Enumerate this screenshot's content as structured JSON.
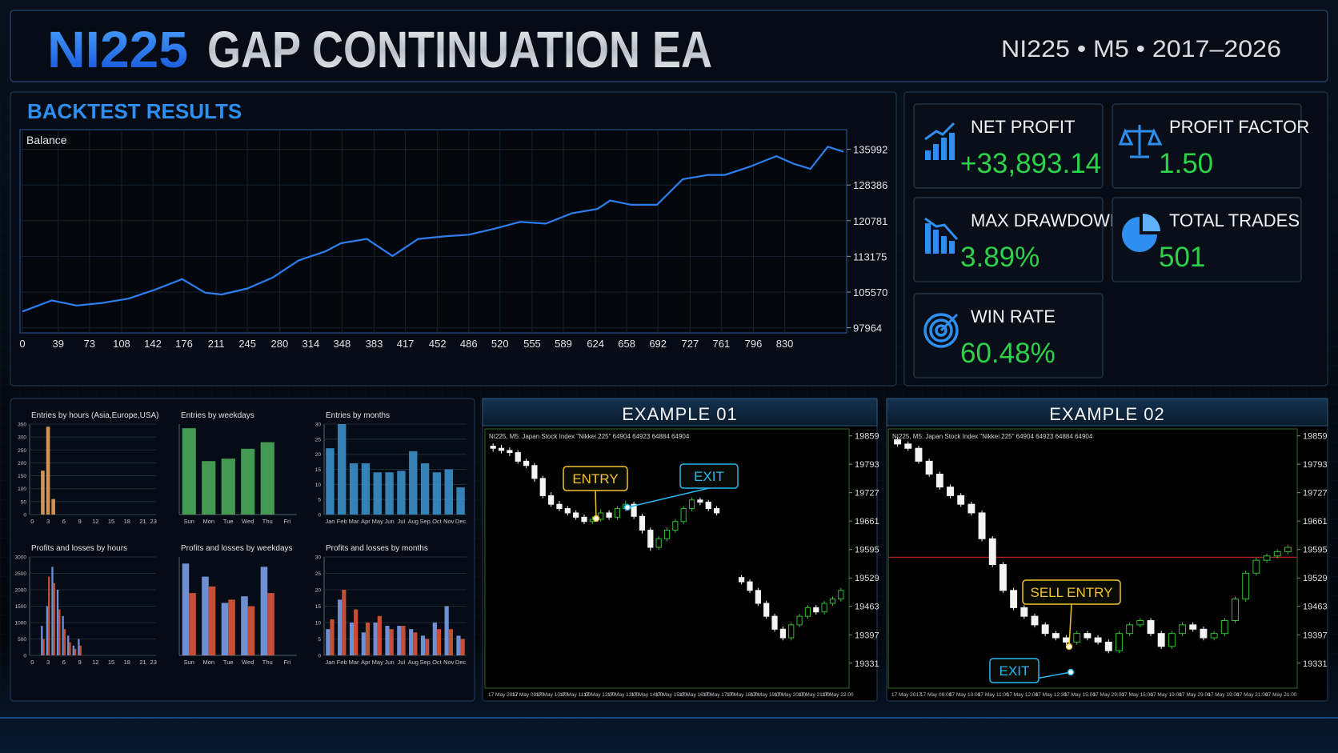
{
  "header": {
    "title_accent": "NI225",
    "title": "GAP CONTINUATION EA",
    "subtitle": "NI225 • M5 • 2017–2026"
  },
  "backtest": {
    "title": "BACKTEST RESULTS",
    "chart": {
      "type": "line",
      "label": "Balance",
      "color": "#2d7ff0",
      "x": [
        0,
        32,
        59,
        87,
        115,
        143,
        174,
        199,
        217,
        245,
        273,
        301,
        329,
        347,
        375,
        403,
        431,
        459,
        486,
        514,
        542,
        570,
        598,
        626,
        640,
        663,
        691,
        719,
        747,
        765,
        793,
        821,
        840,
        858,
        877,
        894
      ],
      "values": [
        101421,
        103786,
        102695,
        103241,
        104150,
        105970,
        108335,
        105424,
        105060,
        106334,
        108699,
        112338,
        114158,
        115977,
        116887,
        113248,
        116887,
        117433,
        117797,
        119070,
        120526,
        120162,
        122347,
        123256,
        125075,
        124166,
        124166,
        129624,
        130534,
        130534,
        132353,
        134536,
        132898,
        131807,
        136537,
        135446
      ],
      "xlim": [
        0,
        894
      ],
      "ylim": [
        96872,
        140176
      ],
      "xticks": [
        0,
        39,
        73,
        108,
        142,
        176,
        211,
        245,
        280,
        314,
        348,
        383,
        417,
        452,
        486,
        520,
        555,
        589,
        624,
        658,
        692,
        727,
        761,
        796,
        830
      ],
      "yticks": [
        97964,
        105570,
        113175,
        120781,
        128386,
        135992
      ],
      "grid": true
    }
  },
  "stats": [
    {
      "label": "NET PROFIT",
      "value": "+33,893.14"
    },
    {
      "label": "PROFIT FACTOR",
      "value": "1.50"
    },
    {
      "label": "MAX DRAWDOWN",
      "value": "3.89%"
    },
    {
      "label": "TOTAL TRADES",
      "value": "501"
    },
    {
      "label": "WIN RATE",
      "value": "60.48%"
    }
  ],
  "distributions": [
    {
      "type": "bar",
      "title": "Entries by hours (Asia,Europe,USA)",
      "color": "#e8a25a",
      "categories": [
        0,
        null,
        null,
        3,
        null,
        null,
        6,
        null,
        null,
        9,
        null,
        null,
        12,
        null,
        null,
        15,
        null,
        null,
        18,
        null,
        null,
        21,
        null,
        23
      ],
      "values": [
        0,
        0,
        170,
        340,
        60,
        0,
        0,
        0,
        0,
        0,
        0,
        0,
        0,
        0,
        0,
        0,
        0,
        0,
        0,
        0,
        0,
        0,
        0,
        0
      ],
      "ylim": [
        0,
        350
      ],
      "yticks": [
        0,
        50,
        100,
        150,
        200,
        250,
        300,
        350
      ]
    },
    {
      "type": "bar",
      "title": "Entries by weekdays",
      "color": "#4caa5a",
      "categories": [
        "Sun",
        "Mon",
        "Tue",
        "Wed",
        "Thu",
        "Fri"
      ],
      "values": [
        105,
        65,
        68,
        80,
        88,
        0
      ],
      "ylim": [
        0,
        110
      ]
    },
    {
      "type": "bar",
      "title": "Entries by months",
      "color": "#3a8fc8",
      "categories": [
        "Jan",
        "Feb",
        "Mar",
        "Apr",
        "May",
        "Jun",
        "Jul",
        "Aug",
        "Sep",
        "Oct",
        "Nov",
        "Dec"
      ],
      "values": [
        22,
        30,
        17,
        17,
        14,
        14,
        14.5,
        21,
        17,
        14,
        15,
        9
      ],
      "ylim": [
        0,
        30
      ],
      "yticks": [
        0,
        5,
        10,
        15,
        20,
        25,
        30
      ]
    },
    {
      "type": "bar",
      "title": "Profits and losses by hours",
      "categories": [
        0,
        null,
        null,
        3,
        null,
        null,
        6,
        null,
        null,
        9,
        null,
        null,
        12,
        null,
        null,
        15,
        null,
        null,
        18,
        null,
        null,
        21,
        null,
        23
      ],
      "series": [
        {
          "color": "#7a9ee8",
          "values": [
            0,
            0,
            900,
            1500,
            2700,
            2000,
            1200,
            600,
            300,
            500,
            0,
            0,
            0,
            0,
            0,
            0,
            0,
            0,
            0,
            0,
            0,
            0,
            0,
            0
          ]
        },
        {
          "color": "#d9553a",
          "values": [
            0,
            0,
            500,
            2400,
            2200,
            1400,
            800,
            400,
            200,
            300,
            0,
            0,
            0,
            0,
            0,
            0,
            0,
            0,
            0,
            0,
            0,
            0,
            0,
            0
          ]
        }
      ],
      "ylim": [
        0,
        3000
      ],
      "yticks": [
        0,
        500,
        1000,
        1500,
        2000,
        2500,
        3000
      ]
    },
    {
      "type": "bar",
      "title": "Profits and losses by weekdays",
      "categories": [
        "Sun",
        "Mon",
        "Tue",
        "Wed",
        "Thu",
        "Fri"
      ],
      "series": [
        {
          "color": "#7a9ee8",
          "values": [
            2800,
            2400,
            1600,
            1800,
            2700,
            0
          ]
        },
        {
          "color": "#d9553a",
          "values": [
            1900,
            2100,
            1700,
            1500,
            1900,
            0
          ]
        }
      ],
      "ylim": [
        0,
        3000
      ]
    },
    {
      "type": "bar",
      "title": "Profits and losses by months",
      "categories": [
        "Jan",
        "Feb",
        "Mar",
        "Apr",
        "May",
        "Jun",
        "Jul",
        "Aug",
        "Sep",
        "Oct",
        "Nov",
        "Dec"
      ],
      "series": [
        {
          "color": "#7a9ee8",
          "values": [
            8,
            17,
            10,
            7,
            10,
            9,
            9,
            8,
            6,
            10,
            15,
            6
          ]
        },
        {
          "color": "#d9553a",
          "values": [
            11,
            20,
            14,
            10,
            12,
            8,
            9,
            7,
            5,
            8,
            8,
            5
          ]
        }
      ],
      "ylim": [
        0,
        30
      ],
      "yticks": [
        0,
        5,
        10,
        15,
        20,
        25,
        30
      ]
    }
  ],
  "examples": [
    {
      "title": "EXAMPLE 01",
      "chart": {
        "type": "candlestick",
        "info": "NI225, M5:  Japan Stock Index \"Nikkei 225\"  64904 64923 64884 64904",
        "candles": [
          [
            19835,
            19842,
            19822,
            19830
          ],
          [
            19830,
            19838,
            19818,
            19825
          ],
          [
            19825,
            19832,
            19812,
            19820
          ],
          [
            19820,
            19826,
            19794,
            19800
          ],
          [
            19800,
            19806,
            19784,
            19790
          ],
          [
            19790,
            19796,
            19752,
            19760
          ],
          [
            19760,
            19766,
            19714,
            19720
          ],
          [
            19720,
            19728,
            19694,
            19700
          ],
          [
            19700,
            19708,
            19684,
            19690
          ],
          [
            19690,
            19696,
            19674,
            19680
          ],
          [
            19680,
            19686,
            19664,
            19670
          ],
          [
            19670,
            19676,
            19654,
            19660
          ],
          [
            19660,
            19672,
            19654,
            19665
          ],
          [
            19665,
            19688,
            19660,
            19680
          ],
          [
            19680,
            19686,
            19664,
            19670
          ],
          [
            19670,
            19696,
            19664,
            19690
          ],
          [
            19690,
            19708,
            19684,
            19700
          ],
          [
            19700,
            19706,
            19666,
            19672
          ],
          [
            19672,
            19678,
            19632,
            19640
          ],
          [
            19640,
            19646,
            19592,
            19600
          ],
          [
            19600,
            19626,
            19594,
            19620
          ],
          [
            19620,
            19646,
            19614,
            19640
          ],
          [
            19640,
            19666,
            19634,
            19660
          ],
          [
            19660,
            19696,
            19654,
            19690
          ],
          [
            19690,
            19716,
            19684,
            19710
          ],
          [
            19710,
            19716,
            19698,
            19705
          ],
          [
            19705,
            19710,
            19684,
            19690
          ],
          [
            19690,
            19696,
            19674,
            19680
          ],
          null,
          null,
          [
            19530,
            19536,
            19514,
            19520
          ],
          [
            19520,
            19526,
            19494,
            19500
          ],
          [
            19500,
            19506,
            19464,
            19470
          ],
          [
            19470,
            19476,
            19434,
            19440
          ],
          [
            19440,
            19446,
            19404,
            19410
          ],
          [
            19410,
            19416,
            19384,
            19390
          ],
          [
            19390,
            19426,
            19384,
            19420
          ],
          [
            19420,
            19446,
            19414,
            19440
          ],
          [
            19440,
            19466,
            19434,
            19460
          ],
          [
            19460,
            19466,
            19444,
            19450
          ],
          [
            19450,
            19476,
            19444,
            19470
          ],
          [
            19470,
            19486,
            19464,
            19480
          ],
          [
            19480,
            19506,
            19474,
            19500
          ]
        ],
        "ylim": [
          19273,
          19875
        ],
        "yticks": [
          19331,
          19397,
          19463,
          19529,
          19595,
          19661,
          19727,
          19793,
          19859
        ],
        "xlabels": [
          "17 May 2017",
          "17 May 09:00",
          "17 May 10:00",
          "17 May 11:00",
          "17 May 12:00",
          "17 May 13:00",
          "17 May 14:00",
          "17 May 15:00",
          "17 May 16:00",
          "17 May 17:00",
          "17 May 18:00",
          "17 May 19:00",
          "17 May 20:00",
          "17 May 21:00",
          "17 May 22:00"
        ],
        "annotations": [
          {
            "text": "ENTRY"
          },
          {
            "text": "EXIT"
          }
        ]
      }
    },
    {
      "title": "EXAMPLE 02",
      "chart": {
        "type": "candlestick",
        "info": "NI225, M5:  Japan Stock Index \"Nikkei 225\"  64904 64923 64884 64904",
        "candles": [
          [
            19850,
            19856,
            19834,
            19840
          ],
          [
            19840,
            19846,
            19824,
            19830
          ],
          [
            19830,
            19836,
            19794,
            19800
          ],
          [
            19800,
            19806,
            19764,
            19770
          ],
          [
            19770,
            19776,
            19734,
            19740
          ],
          [
            19740,
            19746,
            19714,
            19720
          ],
          [
            19720,
            19726,
            19694,
            19700
          ],
          [
            19700,
            19706,
            19674,
            19680
          ],
          [
            19680,
            19686,
            19614,
            19620
          ],
          [
            19620,
            19626,
            19554,
            19560
          ],
          [
            19560,
            19566,
            19494,
            19500
          ],
          [
            19500,
            19506,
            19454,
            19460
          ],
          [
            19460,
            19466,
            19434,
            19440
          ],
          [
            19440,
            19446,
            19414,
            19420
          ],
          [
            19420,
            19426,
            19394,
            19400
          ],
          [
            19400,
            19406,
            19384,
            19390
          ],
          [
            19390,
            19396,
            19374,
            19380
          ],
          [
            19380,
            19406,
            19374,
            19400
          ],
          [
            19400,
            19406,
            19384,
            19390
          ],
          [
            19390,
            19396,
            19374,
            19380
          ],
          [
            19380,
            19386,
            19354,
            19360
          ],
          [
            19360,
            19406,
            19354,
            19400
          ],
          [
            19400,
            19426,
            19394,
            19420
          ],
          [
            19420,
            19436,
            19414,
            19430
          ],
          [
            19430,
            19436,
            19394,
            19400
          ],
          [
            19400,
            19406,
            19364,
            19370
          ],
          [
            19370,
            19406,
            19364,
            19400
          ],
          [
            19400,
            19426,
            19394,
            19420
          ],
          [
            19420,
            19426,
            19404,
            19410
          ],
          [
            19410,
            19416,
            19384,
            19390
          ],
          [
            19390,
            19406,
            19384,
            19400
          ],
          [
            19400,
            19436,
            19394,
            19430
          ],
          [
            19430,
            19486,
            19424,
            19480
          ],
          [
            19480,
            19546,
            19474,
            19540
          ],
          [
            19540,
            19576,
            19534,
            19570
          ],
          [
            19570,
            19586,
            19564,
            19580
          ],
          [
            19580,
            19596,
            19574,
            19590
          ],
          [
            19590,
            19606,
            19584,
            19600
          ]
        ],
        "level": 19577,
        "ylim": [
          19273,
          19875
        ],
        "yticks": [
          19331,
          19397,
          19463,
          19529,
          19595,
          19661,
          19727,
          19793,
          19859
        ],
        "xlabels": [
          "17 May 2017",
          "17 May 09:00",
          "17 May 10:00",
          "17 May 11:00",
          "17 May 12:00",
          "17 May 12:30",
          "17 May 15:00",
          "17 May 29:00",
          "17 May 15:00",
          "17 May 19:00",
          "17 May 29:00",
          "17 May 19:00",
          "17 May 21:00",
          "17 May 21:00"
        ],
        "annotations": [
          {
            "text": "SELL ENTRY"
          },
          {
            "text": "EXIT"
          }
        ]
      }
    }
  ]
}
